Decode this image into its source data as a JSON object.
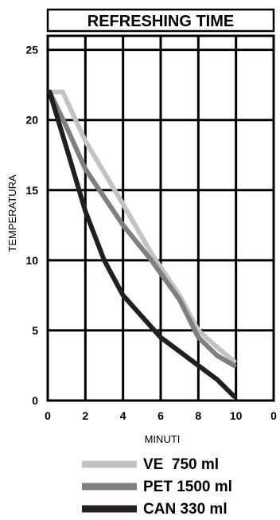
{
  "chart_data": {
    "type": "line",
    "title": "REFRESHING TIME",
    "xlabel": "MINUTI",
    "ylabel": "TEMPERATURA",
    "xlim": [
      0,
      12
    ],
    "ylim": [
      0,
      26
    ],
    "x_tick_labels": [
      "0",
      "2",
      "4",
      "6",
      "8",
      "10",
      "0"
    ],
    "y_tick_labels": [
      "0",
      "5",
      "10",
      "15",
      "20",
      "25"
    ],
    "grid": true,
    "legend_position": "bottom",
    "series": [
      {
        "name": "VE  750 ml",
        "color": "#c3c3c3",
        "x": [
          0.1,
          0.8,
          2,
          4,
          5.5,
          7,
          8,
          9,
          9.9
        ],
        "y": [
          22,
          22,
          18.5,
          14,
          10.5,
          7.5,
          5,
          3.8,
          2.8
        ]
      },
      {
        "name": "PET 1500 ml",
        "color": "#7f7f7f",
        "x": [
          0.1,
          1,
          2,
          4,
          5.5,
          7,
          8,
          9,
          9.9
        ],
        "y": [
          22,
          19.5,
          16.5,
          12.5,
          10,
          7.2,
          4.5,
          3.2,
          2.5
        ]
      },
      {
        "name": "CAN 330 ml",
        "color": "#231f20",
        "x": [
          0.1,
          1,
          2,
          3,
          4,
          6,
          7.5,
          9,
          9.9
        ],
        "y": [
          22,
          18,
          13.5,
          10,
          7.5,
          4.5,
          3,
          1.5,
          0.3
        ]
      }
    ]
  }
}
